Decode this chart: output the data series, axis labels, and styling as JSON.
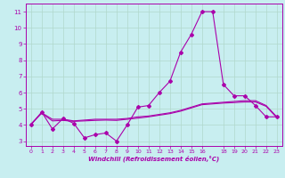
{
  "title": "",
  "xlabel": "Windchill (Refroidissement éolien,°C)",
  "ylabel": "",
  "background_color": "#c8eef0",
  "grid_color": "#b0d8cc",
  "line_color": "#aa00aa",
  "xlim": [
    -0.5,
    23.5
  ],
  "ylim": [
    2.7,
    11.5
  ],
  "xticks": [
    0,
    1,
    2,
    3,
    4,
    5,
    6,
    7,
    8,
    9,
    10,
    11,
    12,
    13,
    14,
    15,
    16,
    18,
    19,
    20,
    21,
    22,
    23
  ],
  "yticks": [
    3,
    4,
    5,
    6,
    7,
    8,
    9,
    10,
    11
  ],
  "line1_x": [
    0,
    1,
    2,
    3,
    4,
    5,
    6,
    7,
    8,
    9,
    10,
    11,
    12,
    13,
    14,
    15,
    16,
    17,
    18,
    19,
    20,
    21,
    22,
    23
  ],
  "line1_y": [
    4.0,
    4.8,
    3.75,
    4.4,
    4.1,
    3.2,
    3.4,
    3.5,
    3.0,
    4.0,
    5.1,
    5.2,
    6.0,
    6.7,
    8.5,
    9.6,
    11.0,
    11.0,
    6.5,
    5.8,
    5.8,
    5.2,
    4.5,
    4.5
  ],
  "line2_x": [
    0,
    1,
    2,
    3,
    4,
    5,
    6,
    7,
    8,
    9,
    10,
    11,
    12,
    13,
    14,
    15,
    16,
    17,
    18,
    19,
    20,
    21,
    22,
    23
  ],
  "line2_y": [
    4.05,
    4.75,
    4.35,
    4.35,
    4.25,
    4.3,
    4.35,
    4.35,
    4.35,
    4.4,
    4.5,
    4.55,
    4.65,
    4.75,
    4.9,
    5.1,
    5.3,
    5.35,
    5.4,
    5.45,
    5.5,
    5.5,
    5.2,
    4.5
  ],
  "line3_x": [
    0,
    1,
    2,
    3,
    4,
    5,
    6,
    7,
    8,
    9,
    10,
    11,
    12,
    13,
    14,
    15,
    16,
    17,
    18,
    19,
    20,
    21,
    22,
    23
  ],
  "line3_y": [
    4.05,
    4.72,
    4.25,
    4.28,
    4.22,
    4.25,
    4.28,
    4.3,
    4.28,
    4.35,
    4.42,
    4.5,
    4.6,
    4.7,
    4.85,
    5.05,
    5.25,
    5.3,
    5.35,
    5.38,
    5.42,
    5.42,
    5.15,
    4.45
  ]
}
